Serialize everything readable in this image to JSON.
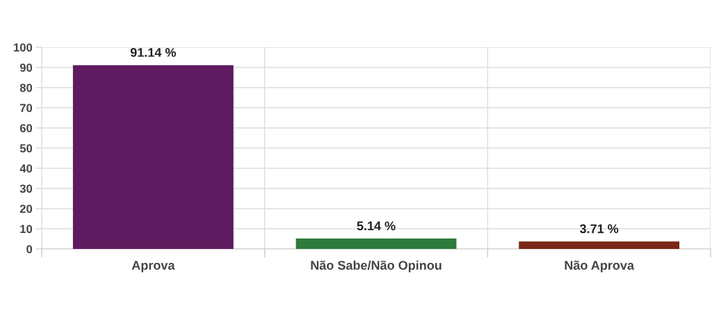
{
  "chart_data": {
    "type": "bar",
    "categories": [
      "Aprova",
      "Não Sabe/Não Opinou",
      "Não Aprova"
    ],
    "values": [
      91.14,
      5.14,
      3.71
    ],
    "colors": [
      "#5f1b5f",
      "#2e7b3c",
      "#7b2518"
    ],
    "value_labels": [
      "91.14 %",
      "5.14 %",
      "3.71 %"
    ],
    "ylim": [
      0,
      100
    ],
    "yticks": [
      0,
      10,
      20,
      30,
      40,
      50,
      60,
      70,
      80,
      90,
      100
    ],
    "grid": true
  }
}
